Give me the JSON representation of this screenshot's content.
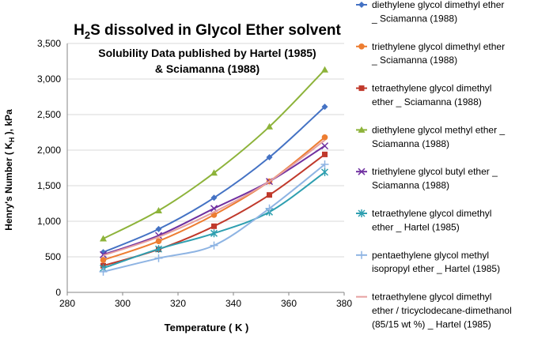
{
  "chart_data": {
    "type": "line",
    "title_main": "H",
    "title_sub": "2",
    "title_rest": "S dissolved in Glycol Ether solvent",
    "subtitle_line1": "Solubility Data published by Hartel (1985)",
    "subtitle_line2": "& Sciamanna (1988)",
    "xlabel": "Temperature ( K )",
    "ylabel_pre": "Henry's Number ( K",
    "ylabel_sub": "H",
    "ylabel_post": " ), kPa",
    "xlim": [
      280,
      380
    ],
    "ylim": [
      0,
      3500
    ],
    "x_ticks": [
      "280",
      "300",
      "320",
      "340",
      "360",
      "380"
    ],
    "y_ticks": [
      "0",
      "500",
      "1,000",
      "1,500",
      "2,000",
      "2,500",
      "3,000",
      "3,500"
    ],
    "grid": "horizontal",
    "legend_position": "right",
    "series": [
      {
        "legend_lines": [
          "diethylene glycol dimethyl ether",
          "_ Sciamanna (1988)"
        ],
        "color": "#4472C4",
        "marker": "diamond",
        "x": [
          293,
          313,
          333,
          353,
          373
        ],
        "values": [
          565,
          890,
          1330,
          1900,
          2610
        ]
      },
      {
        "legend_lines": [
          "triethylene glycol dimethyl ether",
          "_ Sciamanna (1988)"
        ],
        "color": "#ED7D31",
        "marker": "circle",
        "x": [
          293,
          313,
          333,
          353,
          373
        ],
        "values": [
          455,
          720,
          1090,
          1560,
          2180
        ]
      },
      {
        "legend_lines": [
          "tetraethylene glycol dimethyl",
          "ether  _ Sciamanna (1988)"
        ],
        "color": "#C0392B",
        "marker": "square",
        "x": [
          293,
          313,
          333,
          353,
          373
        ],
        "values": [
          375,
          605,
          930,
          1370,
          1940
        ]
      },
      {
        "legend_lines": [
          "diethylene glycol methyl ether  _",
          "Sciamanna (1988)"
        ],
        "color": "#8DB33A",
        "marker": "triangle",
        "x": [
          293,
          313,
          333,
          353,
          373
        ],
        "values": [
          755,
          1150,
          1680,
          2330,
          3130
        ]
      },
      {
        "legend_lines": [
          "triethylene glycol butyl ether  _",
          "Sciamanna (1988)"
        ],
        "color": "#7030A0",
        "marker": "x",
        "x": [
          293,
          313,
          333,
          353,
          373
        ],
        "values": [
          530,
          800,
          1180,
          1560,
          2060
        ]
      },
      {
        "legend_lines": [
          "tetraethylene glycol dimethyl",
          "ether  _ Hartel (1985)"
        ],
        "color": "#2E9FB0",
        "marker": "star",
        "x": [
          293,
          313,
          333,
          353,
          373
        ],
        "values": [
          340,
          610,
          830,
          1130,
          1690
        ]
      },
      {
        "legend_lines": [
          "pentaethylene glycol methyl",
          "isopropyl ether  _ Hartel (1985)"
        ],
        "color": "#8EB4E3",
        "marker": "plus",
        "x": [
          293,
          313,
          333,
          353,
          373
        ],
        "values": [
          290,
          480,
          660,
          1180,
          1800
        ]
      },
      {
        "legend_lines": [
          "tetraethylene glycol dimethyl",
          "ether / tricyclodecane-dimethanol",
          "(85/15 wt %)  _ Hartel (1985)"
        ],
        "color": "#E6A0A0",
        "marker": "none",
        "x": [
          293,
          313,
          333,
          353,
          373
        ],
        "values": [
          520,
          780,
          1130,
          1560,
          2140
        ]
      }
    ]
  }
}
